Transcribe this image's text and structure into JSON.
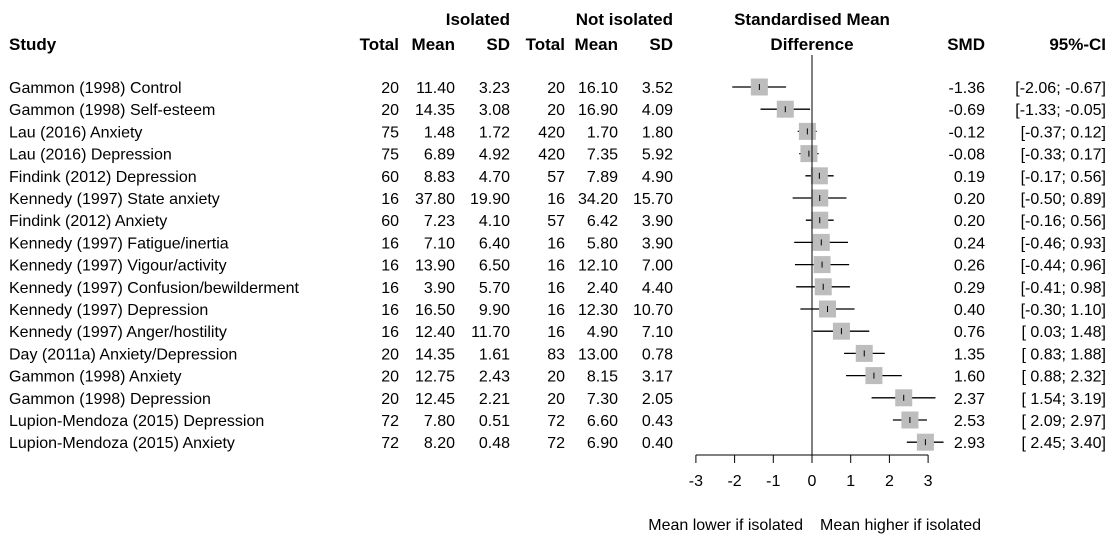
{
  "headers": {
    "study": "Study",
    "isolated": "Isolated",
    "not_isolated": "Not isolated",
    "total": "Total",
    "mean": "Mean",
    "sd": "SD",
    "smd_title_line1": "Standardised Mean",
    "smd_title_line2": "Difference",
    "smd": "SMD",
    "ci": "95%-CI"
  },
  "xaxis": {
    "label_left": "Mean lower if isolated",
    "label_right": "Mean higher if isolated"
  },
  "colors": {
    "box": "#bdbdbd",
    "line": "#000000"
  },
  "chart_data": {
    "type": "forest",
    "title": "Standardised Mean Difference",
    "xlim": [
      -3,
      3
    ],
    "xticks": [
      -3,
      -2,
      -1,
      0,
      1,
      2,
      3
    ],
    "reference_line": 0,
    "grid": false,
    "rows": [
      {
        "study": "Gammon (1998) Control",
        "iso_total": "20",
        "iso_mean": "11.40",
        "iso_sd": "3.23",
        "not_total": "20",
        "not_mean": "16.10",
        "not_sd": "3.52",
        "smd": -1.36,
        "lo": -2.06,
        "hi": -0.67,
        "smd_text": "-1.36",
        "ci_text": "[-2.06; -0.67]"
      },
      {
        "study": "Gammon (1998) Self-esteem",
        "iso_total": "20",
        "iso_mean": "14.35",
        "iso_sd": "3.08",
        "not_total": "20",
        "not_mean": "16.90",
        "not_sd": "4.09",
        "smd": -0.69,
        "lo": -1.33,
        "hi": -0.05,
        "smd_text": "-0.69",
        "ci_text": "[-1.33; -0.05]"
      },
      {
        "study": "Lau (2016) Anxiety",
        "iso_total": "75",
        "iso_mean": "1.48",
        "iso_sd": "1.72",
        "not_total": "420",
        "not_mean": "1.70",
        "not_sd": "1.80",
        "smd": -0.12,
        "lo": -0.37,
        "hi": 0.12,
        "smd_text": "-0.12",
        "ci_text": "[-0.37;  0.12]"
      },
      {
        "study": "Lau (2016) Depression",
        "iso_total": "75",
        "iso_mean": "6.89",
        "iso_sd": "4.92",
        "not_total": "420",
        "not_mean": "7.35",
        "not_sd": "5.92",
        "smd": -0.08,
        "lo": -0.33,
        "hi": 0.17,
        "smd_text": "-0.08",
        "ci_text": "[-0.33;  0.17]"
      },
      {
        "study": "Findink (2012) Depression",
        "iso_total": "60",
        "iso_mean": "8.83",
        "iso_sd": "4.70",
        "not_total": "57",
        "not_mean": "7.89",
        "not_sd": "4.90",
        "smd": 0.19,
        "lo": -0.17,
        "hi": 0.56,
        "smd_text": "0.19",
        "ci_text": "[-0.17;  0.56]"
      },
      {
        "study": "Kennedy (1997) State anxiety",
        "iso_total": "16",
        "iso_mean": "37.80",
        "iso_sd": "19.90",
        "not_total": "16",
        "not_mean": "34.20",
        "not_sd": "15.70",
        "smd": 0.2,
        "lo": -0.5,
        "hi": 0.89,
        "smd_text": "0.20",
        "ci_text": "[-0.50;  0.89]"
      },
      {
        "study": "Findink (2012) Anxiety",
        "iso_total": "60",
        "iso_mean": "7.23",
        "iso_sd": "4.10",
        "not_total": "57",
        "not_mean": "6.42",
        "not_sd": "3.90",
        "smd": 0.2,
        "lo": -0.16,
        "hi": 0.56,
        "smd_text": "0.20",
        "ci_text": "[-0.16;  0.56]"
      },
      {
        "study": "Kennedy (1997) Fatigue/inertia",
        "iso_total": "16",
        "iso_mean": "7.10",
        "iso_sd": "6.40",
        "not_total": "16",
        "not_mean": "5.80",
        "not_sd": "3.90",
        "smd": 0.24,
        "lo": -0.46,
        "hi": 0.93,
        "smd_text": "0.24",
        "ci_text": "[-0.46;  0.93]"
      },
      {
        "study": "Kennedy (1997) Vigour/activity",
        "iso_total": "16",
        "iso_mean": "13.90",
        "iso_sd": "6.50",
        "not_total": "16",
        "not_mean": "12.10",
        "not_sd": "7.00",
        "smd": 0.26,
        "lo": -0.44,
        "hi": 0.96,
        "smd_text": "0.26",
        "ci_text": "[-0.44;  0.96]"
      },
      {
        "study": "Kennedy (1997) Confusion/bewilderment",
        "iso_total": "16",
        "iso_mean": "3.90",
        "iso_sd": "5.70",
        "not_total": "16",
        "not_mean": "2.40",
        "not_sd": "4.40",
        "smd": 0.29,
        "lo": -0.41,
        "hi": 0.98,
        "smd_text": "0.29",
        "ci_text": "[-0.41;  0.98]"
      },
      {
        "study": "Kennedy (1997) Depression",
        "iso_total": "16",
        "iso_mean": "16.50",
        "iso_sd": "9.90",
        "not_total": "16",
        "not_mean": "12.30",
        "not_sd": "10.70",
        "smd": 0.4,
        "lo": -0.3,
        "hi": 1.1,
        "smd_text": "0.40",
        "ci_text": "[-0.30;  1.10]"
      },
      {
        "study": "Kennedy (1997) Anger/hostility",
        "iso_total": "16",
        "iso_mean": "12.40",
        "iso_sd": "11.70",
        "not_total": "16",
        "not_mean": "4.90",
        "not_sd": "7.10",
        "smd": 0.76,
        "lo": 0.03,
        "hi": 1.48,
        "smd_text": "0.76",
        "ci_text": "[ 0.03;  1.48]"
      },
      {
        "study": "Day (2011a) Anxiety/Depression",
        "iso_total": "20",
        "iso_mean": "14.35",
        "iso_sd": "1.61",
        "not_total": "83",
        "not_mean": "13.00",
        "not_sd": "0.78",
        "smd": 1.35,
        "lo": 0.83,
        "hi": 1.88,
        "smd_text": "1.35",
        "ci_text": "[ 0.83;  1.88]"
      },
      {
        "study": "Gammon (1998) Anxiety",
        "iso_total": "20",
        "iso_mean": "12.75",
        "iso_sd": "2.43",
        "not_total": "20",
        "not_mean": "8.15",
        "not_sd": "3.17",
        "smd": 1.6,
        "lo": 0.88,
        "hi": 2.32,
        "smd_text": "1.60",
        "ci_text": "[ 0.88;  2.32]"
      },
      {
        "study": "Gammon (1998) Depression",
        "iso_total": "20",
        "iso_mean": "12.45",
        "iso_sd": "2.21",
        "not_total": "20",
        "not_mean": "7.30",
        "not_sd": "2.05",
        "smd": 2.37,
        "lo": 1.54,
        "hi": 3.19,
        "smd_text": "2.37",
        "ci_text": "[ 1.54;  3.19]"
      },
      {
        "study": "Lupion-Mendoza (2015) Depression",
        "iso_total": "72",
        "iso_mean": "7.80",
        "iso_sd": "0.51",
        "not_total": "72",
        "not_mean": "6.60",
        "not_sd": "0.43",
        "smd": 2.53,
        "lo": 2.09,
        "hi": 2.97,
        "smd_text": "2.53",
        "ci_text": "[ 2.09;  2.97]"
      },
      {
        "study": "Lupion-Mendoza (2015) Anxiety",
        "iso_total": "72",
        "iso_mean": "8.20",
        "iso_sd": "0.48",
        "not_total": "72",
        "not_mean": "6.90",
        "not_sd": "0.40",
        "smd": 2.93,
        "lo": 2.45,
        "hi": 3.4,
        "smd_text": "2.93",
        "ci_text": "[ 2.45;  3.40]"
      }
    ]
  }
}
